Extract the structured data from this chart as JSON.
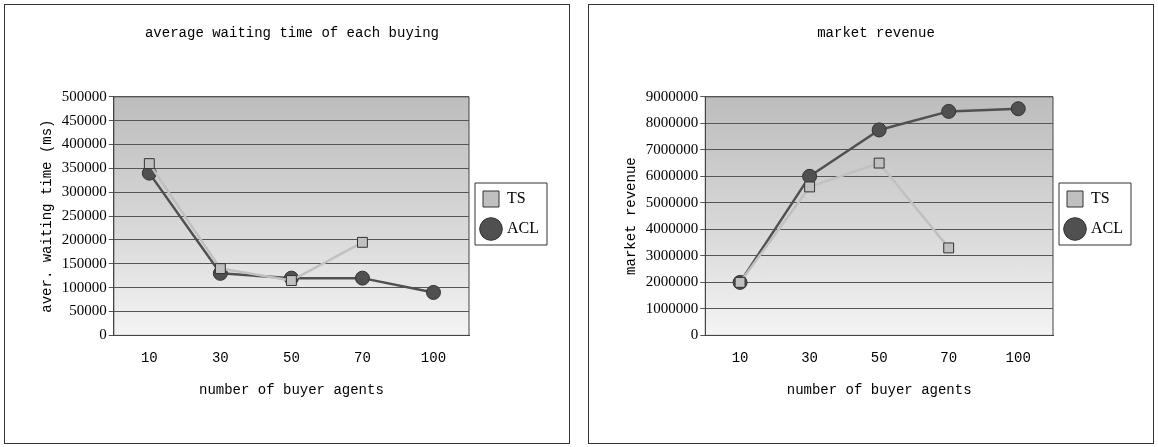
{
  "chart_data": [
    {
      "type": "line",
      "title": "average waiting time of each buying",
      "xlabel": "number of buyer agents",
      "ylabel": "aver. waiting time (ms)",
      "categories": [
        "10",
        "30",
        "50",
        "70",
        "100"
      ],
      "series": [
        {
          "name": "ACL",
          "color": "#505050",
          "marker": "circle",
          "values": [
            340000,
            130000,
            120000,
            120000,
            90000
          ]
        },
        {
          "name": "TS",
          "color": "#c0c0c0",
          "marker": "square",
          "values": [
            360000,
            140000,
            115000,
            195000,
            null
          ]
        }
      ],
      "ylim": [
        0,
        500000
      ],
      "yticks": [
        0,
        50000,
        100000,
        150000,
        200000,
        250000,
        300000,
        350000,
        400000,
        450000,
        500000
      ],
      "grid": "y",
      "legend": "right"
    },
    {
      "type": "line",
      "title": "market revenue",
      "xlabel": "number of buyer agents",
      "ylabel": "market revenue",
      "categories": [
        "10",
        "30",
        "50",
        "70",
        "100"
      ],
      "series": [
        {
          "name": "ACL",
          "color": "#505050",
          "marker": "circle",
          "values": [
            2000000,
            6000000,
            7750000,
            8450000,
            8550000
          ]
        },
        {
          "name": "TS",
          "color": "#c0c0c0",
          "marker": "square",
          "values": [
            2000000,
            5600000,
            6500000,
            3300000,
            null
          ]
        }
      ],
      "ylim": [
        0,
        9000000
      ],
      "yticks": [
        0,
        1000000,
        2000000,
        3000000,
        4000000,
        5000000,
        6000000,
        7000000,
        8000000,
        9000000
      ],
      "grid": "y",
      "legend": "right"
    }
  ]
}
